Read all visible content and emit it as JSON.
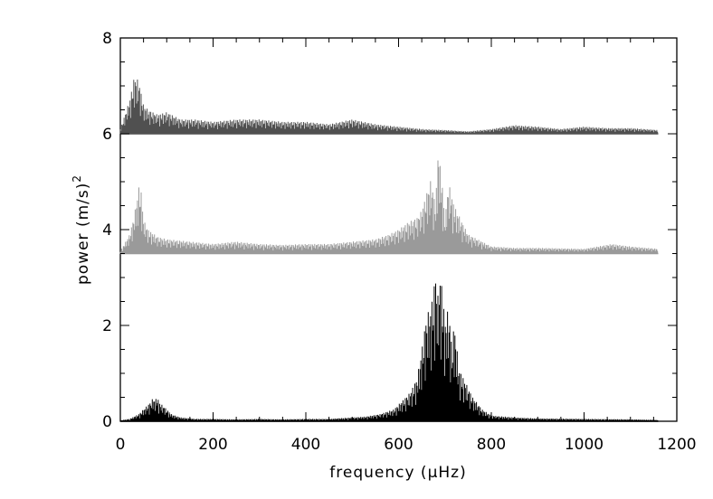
{
  "chart_data": {
    "type": "line",
    "title": "",
    "xlabel": "frequency (μHz)",
    "ylabel_text": "power (m/s)",
    "ylabel_superscript": "2",
    "xlim": [
      0,
      1200
    ],
    "ylim": [
      0,
      8
    ],
    "x_ticks": [
      0,
      200,
      400,
      600,
      800,
      1000,
      1200
    ],
    "y_ticks": [
      0,
      2,
      4,
      6,
      8
    ],
    "x_tick_labels": [
      "0",
      "200",
      "400",
      "600",
      "800",
      "1000",
      "1200"
    ],
    "y_tick_labels": [
      "0",
      "2",
      "4",
      "6",
      "8"
    ],
    "x_minor_step": 50,
    "y_minor_step": 0.5,
    "grid": false,
    "legend": "none",
    "series": [
      {
        "color": "#000000",
        "offset": 0,
        "x": [
          0,
          20,
          40,
          55,
          65,
          70,
          75,
          80,
          85,
          95,
          110,
          130,
          160,
          200,
          250,
          300,
          350,
          400,
          450,
          500,
          530,
          560,
          590,
          610,
          625,
          640,
          650,
          660,
          670,
          680,
          685,
          690,
          695,
          700,
          705,
          710,
          715,
          720,
          730,
          740,
          760,
          780,
          800,
          850,
          900,
          1000,
          1100,
          1160
        ],
        "y": [
          0.02,
          0.05,
          0.15,
          0.3,
          0.4,
          0.48,
          0.45,
          0.5,
          0.38,
          0.3,
          0.15,
          0.08,
          0.05,
          0.05,
          0.04,
          0.05,
          0.04,
          0.05,
          0.05,
          0.08,
          0.1,
          0.15,
          0.25,
          0.45,
          0.6,
          0.9,
          1.5,
          2.2,
          2.4,
          3.1,
          2.6,
          3.1,
          2.7,
          2.1,
          2.3,
          2.2,
          1.5,
          2.1,
          1.1,
          0.9,
          0.5,
          0.25,
          0.12,
          0.08,
          0.06,
          0.05,
          0.04,
          0.03
        ]
      },
      {
        "color": "#9a9a9a",
        "offset": 3.5,
        "x": [
          0,
          20,
          30,
          40,
          45,
          50,
          60,
          80,
          100,
          150,
          200,
          250,
          300,
          350,
          400,
          450,
          500,
          550,
          580,
          600,
          620,
          640,
          650,
          660,
          670,
          680,
          685,
          690,
          695,
          700,
          705,
          710,
          720,
          730,
          750,
          780,
          800,
          850,
          900,
          1000,
          1060,
          1100,
          1160
        ],
        "y": [
          0.05,
          0.4,
          0.8,
          1.4,
          1.3,
          0.7,
          0.5,
          0.35,
          0.3,
          0.25,
          0.2,
          0.25,
          0.2,
          0.18,
          0.2,
          0.2,
          0.25,
          0.3,
          0.4,
          0.5,
          0.65,
          0.75,
          0.9,
          1.25,
          1.55,
          1.0,
          2.2,
          1.8,
          1.4,
          0.6,
          1.3,
          1.4,
          1.0,
          0.8,
          0.4,
          0.25,
          0.15,
          0.12,
          0.12,
          0.1,
          0.2,
          0.15,
          0.1
        ]
      },
      {
        "color": "#505050",
        "offset": 6,
        "x": [
          0,
          20,
          30,
          40,
          50,
          60,
          80,
          100,
          130,
          160,
          200,
          250,
          300,
          350,
          400,
          450,
          500,
          550,
          600,
          650,
          700,
          750,
          800,
          850,
          900,
          950,
          1000,
          1050,
          1100,
          1160
        ],
        "y": [
          0.1,
          0.7,
          1.2,
          1.1,
          0.6,
          0.5,
          0.4,
          0.45,
          0.3,
          0.3,
          0.25,
          0.3,
          0.3,
          0.25,
          0.25,
          0.2,
          0.3,
          0.2,
          0.15,
          0.1,
          0.08,
          0.05,
          0.1,
          0.18,
          0.15,
          0.1,
          0.15,
          0.12,
          0.12,
          0.08
        ]
      }
    ]
  }
}
